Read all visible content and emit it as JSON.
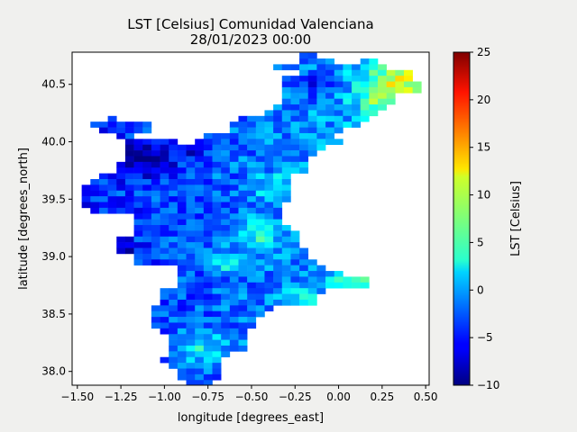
{
  "chart_data": {
    "type": "heatmap",
    "title": "LST [Celsius] Comunidad Valenciana",
    "subtitle": "28/01/2023 00:00",
    "xlabel": "longitude [degrees_east]",
    "ylabel": "latitude [degrees_north]",
    "xlim": [
      -1.53,
      0.52
    ],
    "ylim": [
      37.88,
      40.78
    ],
    "x_ticks": [
      -1.5,
      -1.25,
      -1.0,
      -0.75,
      -0.5,
      -0.25,
      0.0,
      0.25,
      0.5
    ],
    "x_tick_labels": [
      "−1.50",
      "−1.25",
      "−1.00",
      "−0.75",
      "−0.50",
      "−0.25",
      "0.00",
      "0.25",
      "0.50"
    ],
    "y_ticks": [
      38.0,
      38.5,
      39.0,
      39.5,
      40.0,
      40.5
    ],
    "y_tick_labels": [
      "38.0",
      "38.5",
      "39.0",
      "39.5",
      "40.0",
      "40.5"
    ],
    "colorbar": {
      "label": "LST [Celsius]",
      "colormap": "jet",
      "vmin": -10,
      "vmax": 25,
      "ticks": [
        -10,
        -5,
        0,
        5,
        10,
        15,
        20,
        25
      ],
      "tick_labels": [
        "−10",
        "−5",
        "0",
        "5",
        "10",
        "15",
        "20",
        "25"
      ]
    },
    "grid": false,
    "cell_size_deg": 0.05,
    "rows_lat": [
      40.75,
      40.7,
      40.65,
      40.6,
      40.55,
      40.5,
      40.45,
      40.4,
      40.35,
      40.3,
      40.25,
      40.2,
      40.15,
      40.1,
      40.05,
      40.0,
      39.95,
      39.9,
      39.85,
      39.8,
      39.75,
      39.7,
      39.65,
      39.6,
      39.55,
      39.5,
      39.45,
      39.4,
      39.35,
      39.3,
      39.25,
      39.2,
      39.15,
      39.1,
      39.05,
      39.0,
      38.95,
      38.9,
      38.85,
      38.8,
      38.75,
      38.7,
      38.65,
      38.6,
      38.55,
      38.5,
      38.45,
      38.4,
      38.35,
      38.3,
      38.25,
      38.2,
      38.15,
      38.1,
      38.05,
      38.0,
      37.95,
      37.9
    ],
    "rows_lon_ranges": [
      [
        [
          -0.2,
          -0.15
        ]
      ],
      [
        [
          -0.2,
          -0.05
        ],
        [
          0.15,
          0.2
        ]
      ],
      [
        [
          -0.35,
          0.25
        ]
      ],
      [
        [
          -0.2,
          0.4
        ]
      ],
      [
        [
          -0.3,
          0.4
        ]
      ],
      [
        [
          -0.3,
          0.45
        ]
      ],
      [
        [
          -0.3,
          0.45
        ]
      ],
      [
        [
          -0.3,
          0.3
        ]
      ],
      [
        [
          -0.3,
          0.3
        ]
      ],
      [
        [
          -0.35,
          0.25
        ]
      ],
      [
        [
          -0.4,
          0.2
        ]
      ],
      [
        [
          -1.3,
          -1.3
        ],
        [
          -0.55,
          0.15
        ]
      ],
      [
        [
          -1.4,
          -1.1
        ],
        [
          -0.6,
          0.1
        ]
      ],
      [
        [
          -1.35,
          -1.1
        ],
        [
          -0.6,
          0.0
        ]
      ],
      [
        [
          -1.25,
          -1.2
        ],
        [
          -0.75,
          -0.05
        ]
      ],
      [
        [
          -1.2,
          -0.95
        ],
        [
          -0.8,
          0.0
        ]
      ],
      [
        [
          -1.2,
          -0.1
        ]
      ],
      [
        [
          -1.2,
          -0.15
        ]
      ],
      [
        [
          -1.2,
          -0.2
        ]
      ],
      [
        [
          -1.25,
          -0.2
        ]
      ],
      [
        [
          -1.25,
          -0.2
        ]
      ],
      [
        [
          -1.35,
          -0.3
        ]
      ],
      [
        [
          -1.4,
          -0.3
        ]
      ],
      [
        [
          -1.45,
          -0.3
        ]
      ],
      [
        [
          -1.45,
          -0.3
        ]
      ],
      [
        [
          -1.45,
          -0.3
        ]
      ],
      [
        [
          -1.45,
          -0.35
        ]
      ],
      [
        [
          -1.4,
          -0.35
        ]
      ],
      [
        [
          -1.15,
          -0.35
        ]
      ],
      [
        [
          -1.15,
          -0.35
        ]
      ],
      [
        [
          -1.15,
          -0.3
        ]
      ],
      [
        [
          -1.15,
          -0.25
        ]
      ],
      [
        [
          -1.25,
          -0.25
        ]
      ],
      [
        [
          -1.25,
          -0.25
        ]
      ],
      [
        [
          -1.25,
          -0.2
        ]
      ],
      [
        [
          -1.15,
          -0.2
        ]
      ],
      [
        [
          -1.15,
          -0.15
        ]
      ],
      [
        [
          -0.9,
          -0.1
        ]
      ],
      [
        [
          -0.9,
          0.0
        ]
      ],
      [
        [
          -0.9,
          0.15
        ]
      ],
      [
        [
          -0.9,
          0.15
        ]
      ],
      [
        [
          -1.0,
          -0.1
        ]
      ],
      [
        [
          -1.0,
          -0.15
        ]
      ],
      [
        [
          -1.0,
          -0.15
        ]
      ],
      [
        [
          -1.05,
          -0.4
        ]
      ],
      [
        [
          -1.05,
          -0.45
        ]
      ],
      [
        [
          -1.05,
          -0.5
        ]
      ],
      [
        [
          -1.05,
          -0.5
        ]
      ],
      [
        [
          -1.0,
          -0.55
        ]
      ],
      [
        [
          -0.95,
          -0.55
        ]
      ],
      [
        [
          -0.95,
          -0.55
        ]
      ],
      [
        [
          -0.95,
          -0.55
        ]
      ],
      [
        [
          -0.95,
          -0.65
        ]
      ],
      [
        [
          -1.0,
          -0.7
        ]
      ],
      [
        [
          -0.95,
          -0.7
        ]
      ],
      [
        [
          -0.9,
          -0.7
        ]
      ],
      [
        [
          -0.9,
          -0.7
        ]
      ],
      [
        [
          -0.85,
          -0.75
        ]
      ]
    ],
    "cell_values_note_removed": true,
    "value_model": {
      "description_removed": true,
      "terms": [
        {
          "type": "base",
          "value": -4.5
        },
        {
          "type": "lon_gradient",
          "per_deg": 2.8
        },
        {
          "type": "blob",
          "lon": 0.35,
          "lat": 40.55,
          "radius": 0.18,
          "value": 9.5
        },
        {
          "type": "blob",
          "lon": 0.25,
          "lat": 40.35,
          "radius": 0.15,
          "value": 6.5
        },
        {
          "type": "blob",
          "lon": -0.45,
          "lat": 39.2,
          "radius": 0.12,
          "value": 6.5
        },
        {
          "type": "blob",
          "lon": -0.35,
          "lat": 39.6,
          "radius": 0.12,
          "value": 5
        },
        {
          "type": "blob",
          "lon": 0.1,
          "lat": 38.82,
          "radius": 0.12,
          "value": 6
        },
        {
          "type": "blob",
          "lon": -0.2,
          "lat": 38.6,
          "radius": 0.12,
          "value": 5.5
        },
        {
          "type": "blob",
          "lon": -0.8,
          "lat": 38.2,
          "radius": 0.14,
          "value": 6
        },
        {
          "type": "blob",
          "lon": -0.65,
          "lat": 38.95,
          "radius": 0.1,
          "value": 5
        },
        {
          "type": "blob",
          "lon": -1.1,
          "lat": 39.85,
          "radius": 0.15,
          "value": -6
        },
        {
          "type": "blob",
          "lon": -0.15,
          "lat": 40.5,
          "radius": 0.12,
          "value": -4
        },
        {
          "type": "blob",
          "lon": -1.25,
          "lat": 39.05,
          "radius": 0.1,
          "value": -4
        },
        {
          "type": "blob",
          "lon": -0.85,
          "lat": 39.95,
          "radius": 0.12,
          "value": -4
        }
      ],
      "noise_amplitude": 3.0
    }
  }
}
